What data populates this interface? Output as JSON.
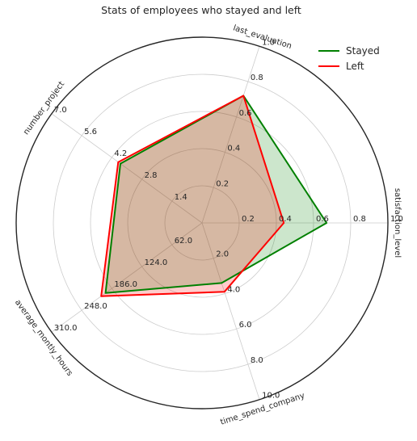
{
  "chart_data": {
    "type": "radar",
    "title": "Stats of employees who stayed and left",
    "axes": [
      {
        "name": "satisfaction_level",
        "max": 1.0,
        "ticks": [
          "0.2",
          "0.4",
          "0.6",
          "0.8",
          "1.0"
        ]
      },
      {
        "name": "last_evaluation",
        "max": 1.0,
        "ticks": [
          "0.2",
          "0.4",
          "0.6",
          "0.8",
          "1.0"
        ]
      },
      {
        "name": "number_project",
        "max": 7.0,
        "ticks": [
          "1.4",
          "2.8",
          "4.2",
          "5.6",
          "7.0"
        ]
      },
      {
        "name": "average_montly_hours",
        "max": 310.0,
        "ticks": [
          "62.0",
          "124.0",
          "186.0",
          "248.0",
          "310.0"
        ]
      },
      {
        "name": "time_spend_company",
        "max": 10.0,
        "ticks": [
          "2.0",
          "4.0",
          "6.0",
          "8.0",
          "10.0"
        ]
      }
    ],
    "series": [
      {
        "name": "Stayed",
        "color": "#008000",
        "fill": "#008000",
        "values": [
          0.67,
          0.72,
          3.8,
          199,
          3.4
        ]
      },
      {
        "name": "Left",
        "color": "#ff0000",
        "fill": "#ff0000",
        "values": [
          0.44,
          0.72,
          3.9,
          208,
          3.9
        ]
      }
    ],
    "grid": true,
    "legend": "top-right"
  }
}
